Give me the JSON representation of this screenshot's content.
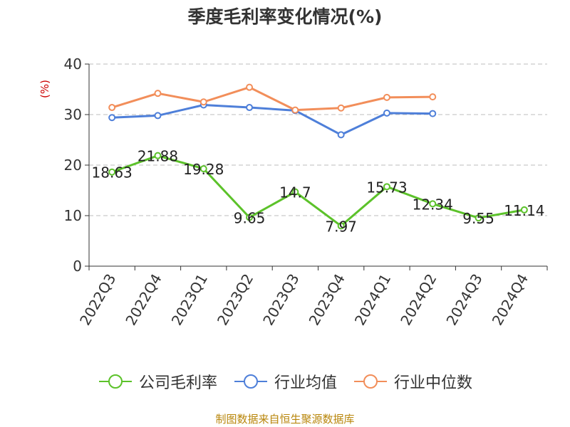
{
  "chart_data": {
    "type": "line",
    "title": "季度毛利率变化情况(%)",
    "ylabel": "(%)",
    "xlabel": "",
    "ylim": [
      0,
      40
    ],
    "yticks": [
      0,
      10,
      20,
      30,
      40
    ],
    "grid": true,
    "legend_position": "bottom",
    "categories": [
      "2022Q3",
      "2022Q4",
      "2023Q1",
      "2023Q2",
      "2023Q3",
      "2023Q4",
      "2024Q1",
      "2024Q2",
      "2024Q3",
      "2024Q4"
    ],
    "series": [
      {
        "name": "公司毛利率",
        "color": "#5cc22a",
        "values": [
          18.63,
          21.88,
          19.28,
          9.65,
          14.7,
          7.97,
          15.73,
          12.34,
          9.55,
          11.14
        ],
        "labels": [
          "18.63",
          "21.88",
          "19.28",
          "9.65",
          "14.7",
          "7.97",
          "15.73",
          "12.34",
          "9.55",
          "11.14"
        ]
      },
      {
        "name": "行业均值",
        "color": "#4e7fd9",
        "values": [
          29.4,
          29.8,
          31.9,
          31.4,
          30.8,
          26.0,
          30.3,
          30.2,
          null,
          null
        ]
      },
      {
        "name": "行业中位数",
        "color": "#f28e5a",
        "values": [
          31.4,
          34.2,
          32.5,
          35.4,
          30.9,
          31.3,
          33.4,
          33.5,
          null,
          null
        ]
      }
    ]
  },
  "source": "制图数据来自恒生聚源数据库"
}
